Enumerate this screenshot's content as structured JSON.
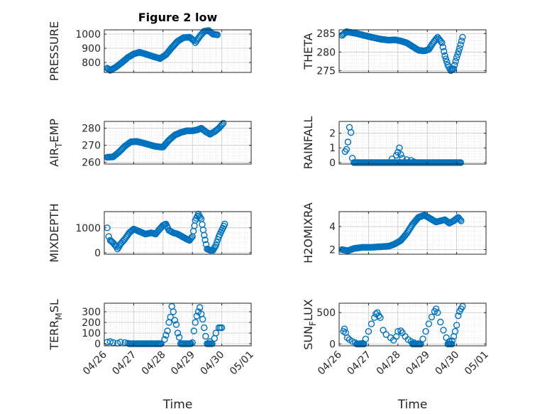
{
  "figure": {
    "background": "#ffffff",
    "marker_color": "#0072BD",
    "grid_color": "#d0d0d0",
    "axes_color": "#262626"
  },
  "chart_data": [
    {
      "type": "scatter",
      "title": "Figure 2 low",
      "ylabel": "PRESSURE",
      "xlabel": "",
      "xlim": [
        0,
        5
      ],
      "xtick_values": [
        0,
        1,
        2,
        3,
        4,
        5
      ],
      "xtick_labels": [],
      "ylim": [
        730,
        1030
      ],
      "ytick_values": [
        800,
        900,
        1000
      ],
      "ytick_labels": [
        "800",
        "900",
        "1000"
      ],
      "grid": true,
      "marker": "circle-open",
      "anchors": [
        [
          0.1,
          760
        ],
        [
          0.2,
          745
        ],
        [
          0.4,
          768
        ],
        [
          0.6,
          800
        ],
        [
          0.8,
          835
        ],
        [
          1.0,
          860
        ],
        [
          1.2,
          872
        ],
        [
          1.4,
          860
        ],
        [
          1.7,
          840
        ],
        [
          1.9,
          828
        ],
        [
          2.1,
          855
        ],
        [
          2.3,
          905
        ],
        [
          2.5,
          950
        ],
        [
          2.7,
          975
        ],
        [
          2.9,
          978
        ],
        [
          3.05,
          955
        ],
        [
          3.1,
          940
        ],
        [
          3.25,
          985
        ],
        [
          3.4,
          1020
        ],
        [
          3.55,
          1025
        ],
        [
          3.7,
          1000
        ],
        [
          3.85,
          995
        ]
      ]
    },
    {
      "type": "scatter",
      "title": "",
      "ylabel": "THETA",
      "xlabel": "",
      "xlim": [
        0,
        5
      ],
      "xtick_values": [
        0,
        1,
        2,
        3,
        4,
        5
      ],
      "xtick_labels": [],
      "ylim": [
        274.5,
        286
      ],
      "ytick_values": [
        275,
        280,
        285
      ],
      "ytick_labels": [
        "275",
        "280",
        "285"
      ],
      "grid": true,
      "marker": "circle-open",
      "anchors": [
        [
          0.1,
          284.5
        ],
        [
          0.25,
          285.5
        ],
        [
          0.6,
          285
        ],
        [
          1.0,
          284.2
        ],
        [
          1.4,
          283.5
        ],
        [
          1.7,
          283.2
        ],
        [
          1.9,
          283.3
        ],
        [
          2.1,
          283
        ],
        [
          2.3,
          282.5
        ],
        [
          2.5,
          281.5
        ],
        [
          2.7,
          280.5
        ],
        [
          2.9,
          280.3
        ],
        [
          3.05,
          280.7
        ],
        [
          3.2,
          282.5
        ],
        [
          3.35,
          284
        ],
        [
          3.5,
          282.5
        ],
        [
          3.6,
          279
        ],
        [
          3.7,
          276.5
        ],
        [
          3.8,
          275
        ],
        [
          3.9,
          275.5
        ],
        [
          4.0,
          278.5
        ],
        [
          4.1,
          281
        ],
        [
          4.2,
          284
        ]
      ]
    },
    {
      "type": "scatter",
      "title": "",
      "ylabel": "AIR_TEMP",
      "xlabel": "",
      "xlim": [
        0,
        5
      ],
      "xtick_values": [
        0,
        1,
        2,
        3,
        4,
        5
      ],
      "xtick_labels": [],
      "ylim": [
        259,
        284
      ],
      "ytick_values": [
        260,
        270,
        280
      ],
      "ytick_labels": [
        "260",
        "270",
        "280"
      ],
      "grid": true,
      "marker": "circle-open",
      "anchors": [
        [
          0.1,
          263
        ],
        [
          0.3,
          263.2
        ],
        [
          0.5,
          266
        ],
        [
          0.7,
          269.5
        ],
        [
          0.9,
          272
        ],
        [
          1.1,
          272.3
        ],
        [
          1.4,
          271
        ],
        [
          1.7,
          269.5
        ],
        [
          1.9,
          269
        ],
        [
          2.0,
          269
        ],
        [
          2.2,
          273
        ],
        [
          2.4,
          276
        ],
        [
          2.6,
          277.5
        ],
        [
          2.8,
          278.5
        ],
        [
          3.0,
          278.5
        ],
        [
          3.15,
          279
        ],
        [
          3.3,
          280
        ],
        [
          3.45,
          278
        ],
        [
          3.6,
          276.5
        ],
        [
          3.75,
          278
        ],
        [
          3.9,
          280
        ],
        [
          4.05,
          283
        ]
      ]
    },
    {
      "type": "scatter",
      "title": "",
      "ylabel": "RAINFALL",
      "xlabel": "",
      "xlim": [
        0,
        5
      ],
      "xtick_values": [
        0,
        1,
        2,
        3,
        4,
        5
      ],
      "xtick_labels": [],
      "ylim": [
        -0.1,
        2.8
      ],
      "ytick_values": [
        0,
        1,
        2
      ],
      "ytick_labels": [
        "0",
        "1",
        "2"
      ],
      "grid": true,
      "marker": "circle-open",
      "points": [
        [
          0.2,
          0.75
        ],
        [
          0.25,
          0.9
        ],
        [
          0.3,
          1.4
        ],
        [
          0.35,
          2.4
        ],
        [
          0.4,
          2.05
        ],
        [
          0.45,
          0.3
        ],
        [
          1.8,
          0.25
        ],
        [
          1.95,
          0.5
        ],
        [
          2.0,
          0.7
        ],
        [
          2.05,
          1.0
        ],
        [
          2.1,
          0.55
        ],
        [
          2.15,
          0.3
        ],
        [
          2.3,
          0.2
        ],
        [
          2.45,
          0.15
        ],
        [
          2.55,
          0.05
        ]
      ],
      "baseline_runs": [
        [
          0.5,
          4.15,
          0
        ]
      ]
    },
    {
      "type": "scatter",
      "title": "",
      "ylabel": "MIXDEPTH",
      "xlabel": "",
      "xlim": [
        0,
        5
      ],
      "xtick_values": [
        0,
        1,
        2,
        3,
        4,
        5
      ],
      "xtick_labels": [],
      "ylim": [
        -60,
        1650
      ],
      "ytick_values": [
        0,
        1000
      ],
      "ytick_labels": [
        "0",
        "1000"
      ],
      "grid": true,
      "marker": "circle-open",
      "anchors": [
        [
          0.1,
          1000
        ],
        [
          0.15,
          650
        ],
        [
          0.2,
          500
        ],
        [
          0.3,
          400
        ],
        [
          0.4,
          250
        ],
        [
          0.45,
          150
        ],
        [
          0.55,
          350
        ],
        [
          0.7,
          550
        ],
        [
          0.85,
          800
        ],
        [
          1.0,
          950
        ],
        [
          1.2,
          850
        ],
        [
          1.4,
          750
        ],
        [
          1.6,
          800
        ],
        [
          1.75,
          750
        ],
        [
          1.85,
          900
        ],
        [
          2.0,
          1100
        ],
        [
          2.1,
          1150
        ],
        [
          2.2,
          900
        ],
        [
          2.35,
          800
        ],
        [
          2.5,
          750
        ],
        [
          2.65,
          650
        ],
        [
          2.8,
          550
        ],
        [
          2.9,
          500
        ],
        [
          3.0,
          650
        ],
        [
          3.1,
          1300
        ],
        [
          3.2,
          1550
        ],
        [
          3.3,
          1350
        ],
        [
          3.4,
          700
        ],
        [
          3.5,
          150
        ],
        [
          3.6,
          100
        ],
        [
          3.7,
          100
        ],
        [
          3.8,
          300
        ],
        [
          3.9,
          650
        ],
        [
          4.0,
          900
        ],
        [
          4.1,
          1150
        ]
      ]
    },
    {
      "type": "scatter",
      "title": "",
      "ylabel": "H2OMIXRA",
      "xlabel": "",
      "xlim": [
        0,
        5
      ],
      "xtick_values": [
        0,
        1,
        2,
        3,
        4,
        5
      ],
      "xtick_labels": [],
      "ylim": [
        1.6,
        5.3
      ],
      "ytick_values": [
        2,
        4
      ],
      "ytick_labels": [
        "2",
        "4"
      ],
      "grid": true,
      "marker": "circle-open",
      "anchors": [
        [
          0.1,
          2.0
        ],
        [
          0.3,
          1.9
        ],
        [
          0.5,
          2.1
        ],
        [
          0.8,
          2.2
        ],
        [
          1.1,
          2.2
        ],
        [
          1.4,
          2.25
        ],
        [
          1.7,
          2.3
        ],
        [
          1.9,
          2.5
        ],
        [
          2.1,
          2.8
        ],
        [
          2.3,
          3.4
        ],
        [
          2.5,
          4.2
        ],
        [
          2.7,
          4.8
        ],
        [
          2.9,
          5.0
        ],
        [
          3.1,
          4.7
        ],
        [
          3.3,
          4.4
        ],
        [
          3.45,
          4.5
        ],
        [
          3.6,
          4.6
        ],
        [
          3.75,
          4.3
        ],
        [
          3.9,
          4.5
        ],
        [
          4.05,
          4.8
        ],
        [
          4.15,
          4.5
        ]
      ]
    },
    {
      "type": "scatter",
      "title": "",
      "ylabel": "TERR_MSL",
      "xlabel": "Time",
      "xlim": [
        0,
        5
      ],
      "xtick_values": [
        0,
        1,
        2,
        3,
        4,
        5
      ],
      "xtick_labels": [
        "04/26",
        "04/27",
        "04/28",
        "04/29",
        "04/30",
        "05/01"
      ],
      "ylim": [
        -20,
        380
      ],
      "ytick_values": [
        0,
        100,
        200,
        300
      ],
      "ytick_labels": [
        "0",
        "100",
        "200",
        "300"
      ],
      "grid": true,
      "marker": "circle-open",
      "points": [
        [
          0.1,
          15
        ],
        [
          0.2,
          20
        ],
        [
          0.3,
          10
        ],
        [
          0.45,
          5
        ],
        [
          0.55,
          15
        ],
        [
          0.7,
          10
        ],
        [
          0.8,
          5
        ],
        [
          2.05,
          40
        ],
        [
          2.1,
          80
        ],
        [
          2.15,
          120
        ],
        [
          2.2,
          200
        ],
        [
          2.25,
          250
        ],
        [
          2.3,
          350
        ],
        [
          2.35,
          300
        ],
        [
          2.4,
          220
        ],
        [
          2.45,
          180
        ],
        [
          2.5,
          100
        ],
        [
          2.55,
          60
        ],
        [
          3.0,
          10
        ],
        [
          3.05,
          120
        ],
        [
          3.1,
          200
        ],
        [
          3.15,
          260
        ],
        [
          3.2,
          300
        ],
        [
          3.25,
          340
        ],
        [
          3.3,
          280
        ],
        [
          3.35,
          230
        ],
        [
          3.4,
          150
        ],
        [
          3.45,
          70
        ],
        [
          3.6,
          20
        ],
        [
          3.75,
          50
        ],
        [
          3.8,
          100
        ],
        [
          3.9,
          150
        ],
        [
          3.95,
          150
        ],
        [
          4.0,
          150
        ]
      ],
      "baseline_runs": [
        [
          0.85,
          1.95,
          0
        ],
        [
          2.6,
          2.95,
          0
        ],
        [
          3.5,
          3.7,
          0
        ]
      ]
    },
    {
      "type": "scatter",
      "title": "",
      "ylabel": "SUN_FLUX",
      "xlabel": "Time",
      "xlim": [
        0,
        5
      ],
      "xtick_values": [
        0,
        1,
        2,
        3,
        4,
        5
      ],
      "xtick_labels": [
        "04/26",
        "04/27",
        "04/28",
        "04/29",
        "04/30",
        "05/01"
      ],
      "ylim": [
        -30,
        650
      ],
      "ytick_values": [
        0,
        500
      ],
      "ytick_labels": [
        "0",
        "500"
      ],
      "grid": true,
      "marker": "circle-open",
      "points": [
        [
          0.15,
          200
        ],
        [
          0.18,
          240
        ],
        [
          0.22,
          180
        ],
        [
          0.28,
          100
        ],
        [
          0.35,
          70
        ],
        [
          0.45,
          40
        ],
        [
          0.55,
          20
        ],
        [
          0.7,
          5
        ],
        [
          0.8,
          10
        ],
        [
          0.9,
          80
        ],
        [
          1.0,
          200
        ],
        [
          1.1,
          320
        ],
        [
          1.2,
          420
        ],
        [
          1.25,
          480
        ],
        [
          1.3,
          500
        ],
        [
          1.35,
          450
        ],
        [
          1.4,
          420
        ],
        [
          1.5,
          220
        ],
        [
          1.6,
          150
        ],
        [
          1.75,
          100
        ],
        [
          1.85,
          60
        ],
        [
          1.95,
          120
        ],
        [
          2.0,
          200
        ],
        [
          2.1,
          210
        ],
        [
          2.15,
          180
        ],
        [
          2.25,
          120
        ],
        [
          2.35,
          70
        ],
        [
          2.45,
          40
        ],
        [
          2.55,
          20
        ],
        [
          2.7,
          5
        ],
        [
          2.85,
          80
        ],
        [
          2.95,
          200
        ],
        [
          3.05,
          320
        ],
        [
          3.15,
          430
        ],
        [
          3.25,
          520
        ],
        [
          3.3,
          560
        ],
        [
          3.35,
          500
        ],
        [
          3.45,
          350
        ],
        [
          3.55,
          220
        ],
        [
          3.65,
          100
        ],
        [
          3.75,
          40
        ],
        [
          3.85,
          50
        ],
        [
          3.9,
          120
        ],
        [
          3.95,
          200
        ],
        [
          4.0,
          300
        ],
        [
          4.05,
          450
        ],
        [
          4.1,
          520
        ],
        [
          4.15,
          560
        ],
        [
          4.2,
          600
        ]
      ],
      "baseline_runs": [
        [
          0.6,
          0.85,
          0
        ],
        [
          2.5,
          2.8,
          0
        ],
        [
          3.7,
          3.85,
          0
        ]
      ]
    }
  ]
}
